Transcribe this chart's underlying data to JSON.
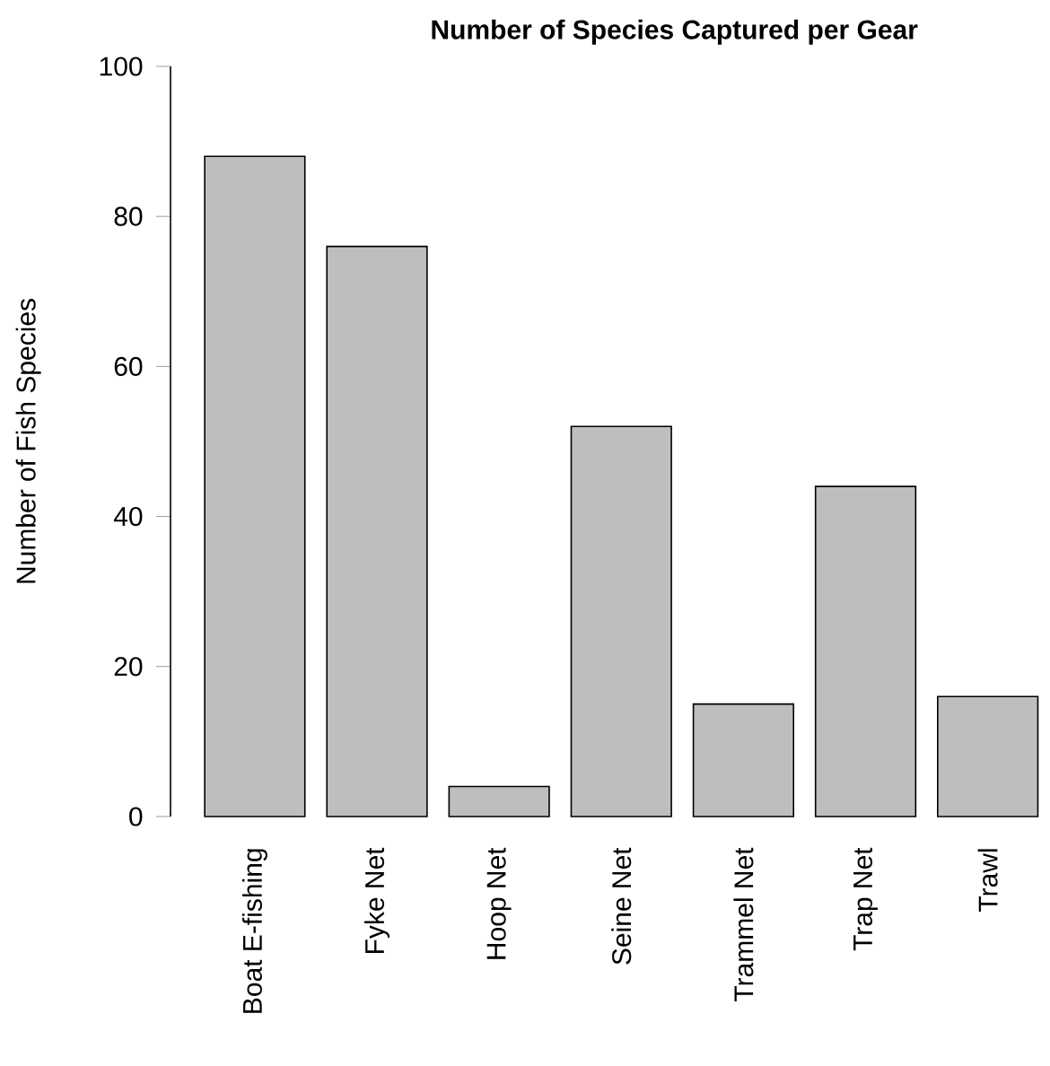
{
  "chart_data": {
    "type": "bar",
    "title": "Number of Species Captured per Gear",
    "ylabel": "Number of Fish Species",
    "categories": [
      "Boat E-fishing",
      "Fyke Net",
      "Hoop Net",
      "Seine Net",
      "Trammel Net",
      "Trap Net",
      "Trawl"
    ],
    "values": [
      88,
      76,
      4,
      52,
      15,
      44,
      16
    ],
    "color": "#bebebe",
    "ylim": [
      0,
      100
    ],
    "yticks": [
      0,
      20,
      40,
      60,
      80,
      100
    ]
  }
}
